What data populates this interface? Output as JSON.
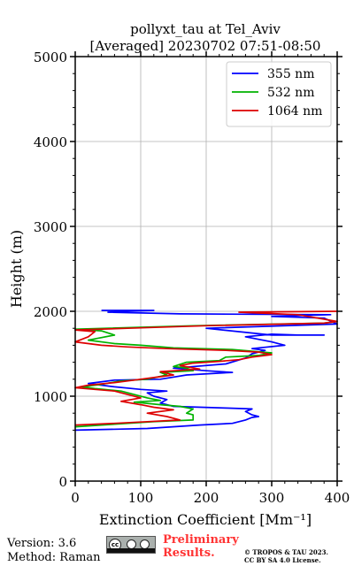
{
  "chart_data": {
    "type": "line",
    "title": "pollyxt_tau at Tel_Aviv",
    "subtitle": "[Averaged] 20230702 07:51-08:50",
    "xlabel": "Extinction Coefficient [Mm⁻¹]",
    "ylabel": "Height (m)",
    "xlim": [
      0,
      400
    ],
    "ylim": [
      0,
      5000
    ],
    "xticks": [
      "0",
      "100",
      "200",
      "300",
      "400"
    ],
    "yticks": [
      "0",
      "1000",
      "2000",
      "3000",
      "4000",
      "5000"
    ],
    "grid": true,
    "legend_position": "top-right",
    "series": [
      {
        "name": "355 nm",
        "color": "#0000ff",
        "points": [
          [
            0,
            600
          ],
          [
            110,
            620
          ],
          [
            190,
            660
          ],
          [
            240,
            680
          ],
          [
            260,
            720
          ],
          [
            270,
            750
          ],
          [
            280,
            760
          ],
          [
            270,
            780
          ],
          [
            260,
            820
          ],
          [
            270,
            850
          ],
          [
            230,
            860
          ],
          [
            150,
            880
          ],
          [
            130,
            920
          ],
          [
            140,
            960
          ],
          [
            120,
            1000
          ],
          [
            110,
            1040
          ],
          [
            140,
            1060
          ],
          [
            100,
            1080
          ],
          [
            60,
            1110
          ],
          [
            20,
            1150
          ],
          [
            60,
            1190
          ],
          [
            130,
            1200
          ],
          [
            170,
            1250
          ],
          [
            240,
            1280
          ],
          [
            200,
            1300
          ],
          [
            150,
            1330
          ],
          [
            230,
            1380
          ],
          [
            260,
            1450
          ],
          [
            270,
            1500
          ],
          [
            290,
            1540
          ],
          [
            270,
            1560
          ],
          [
            320,
            1600
          ],
          [
            300,
            1640
          ],
          [
            260,
            1700
          ],
          [
            300,
            1730
          ],
          [
            340,
            1720
          ],
          [
            380,
            1720
          ],
          [
            300,
            1720
          ],
          [
            200,
            1800
          ],
          [
            400,
            1850
          ],
          [
            380,
            1920
          ],
          [
            300,
            1940
          ],
          [
            390,
            1960
          ],
          [
            160,
            1970
          ],
          [
            50,
            1990
          ],
          [
            120,
            2010
          ],
          [
            40,
            2010
          ]
        ]
      },
      {
        "name": "532 nm",
        "color": "#00b300",
        "points": [
          [
            0,
            640
          ],
          [
            60,
            670
          ],
          [
            120,
            700
          ],
          [
            180,
            720
          ],
          [
            180,
            780
          ],
          [
            170,
            800
          ],
          [
            180,
            850
          ],
          [
            160,
            880
          ],
          [
            130,
            900
          ],
          [
            90,
            930
          ],
          [
            130,
            950
          ],
          [
            110,
            980
          ],
          [
            90,
            1020
          ],
          [
            70,
            1060
          ],
          [
            30,
            1090
          ],
          [
            10,
            1110
          ],
          [
            40,
            1140
          ],
          [
            70,
            1180
          ],
          [
            110,
            1200
          ],
          [
            140,
            1250
          ],
          [
            130,
            1280
          ],
          [
            180,
            1300
          ],
          [
            170,
            1330
          ],
          [
            150,
            1350
          ],
          [
            170,
            1400
          ],
          [
            220,
            1420
          ],
          [
            230,
            1460
          ],
          [
            280,
            1480
          ],
          [
            300,
            1510
          ],
          [
            270,
            1530
          ],
          [
            240,
            1550
          ],
          [
            150,
            1570
          ],
          [
            100,
            1600
          ],
          [
            60,
            1620
          ],
          [
            20,
            1660
          ],
          [
            60,
            1720
          ],
          [
            40,
            1770
          ],
          [
            0,
            1790
          ],
          [
            180,
            1830
          ],
          [
            380,
            1860
          ],
          [
            400,
            1880
          ]
        ]
      },
      {
        "name": "1064 nm",
        "color": "#dd0000",
        "points": [
          [
            0,
            660
          ],
          [
            60,
            680
          ],
          [
            110,
            700
          ],
          [
            160,
            720
          ],
          [
            140,
            760
          ],
          [
            110,
            800
          ],
          [
            150,
            840
          ],
          [
            120,
            870
          ],
          [
            100,
            900
          ],
          [
            70,
            940
          ],
          [
            100,
            980
          ],
          [
            80,
            1020
          ],
          [
            60,
            1060
          ],
          [
            30,
            1080
          ],
          [
            0,
            1100
          ],
          [
            20,
            1130
          ],
          [
            60,
            1160
          ],
          [
            90,
            1190
          ],
          [
            120,
            1220
          ],
          [
            150,
            1250
          ],
          [
            130,
            1290
          ],
          [
            190,
            1320
          ],
          [
            160,
            1360
          ],
          [
            180,
            1390
          ],
          [
            220,
            1410
          ],
          [
            250,
            1430
          ],
          [
            270,
            1460
          ],
          [
            300,
            1490
          ],
          [
            280,
            1520
          ],
          [
            230,
            1540
          ],
          [
            140,
            1560
          ],
          [
            80,
            1580
          ],
          [
            40,
            1600
          ],
          [
            0,
            1640
          ],
          [
            20,
            1700
          ],
          [
            30,
            1760
          ],
          [
            0,
            1780
          ],
          [
            80,
            1800
          ],
          [
            200,
            1830
          ],
          [
            380,
            1860
          ],
          [
            400,
            1880
          ],
          [
            340,
            1960
          ],
          [
            250,
            1990
          ],
          [
            400,
            2000
          ]
        ]
      }
    ]
  },
  "footer": {
    "version": "Version: 3.6",
    "method": "Method: Raman",
    "preliminary_line1": "Preliminary",
    "preliminary_line2": "Results.",
    "copyright_line1": "© TROPOS & TAU 2023.",
    "copyright_line2": "CC BY SA 4.0 License.",
    "cc_badge_text": "cc",
    "cc_badge_by": "BY",
    "cc_badge_sa": "SA"
  }
}
